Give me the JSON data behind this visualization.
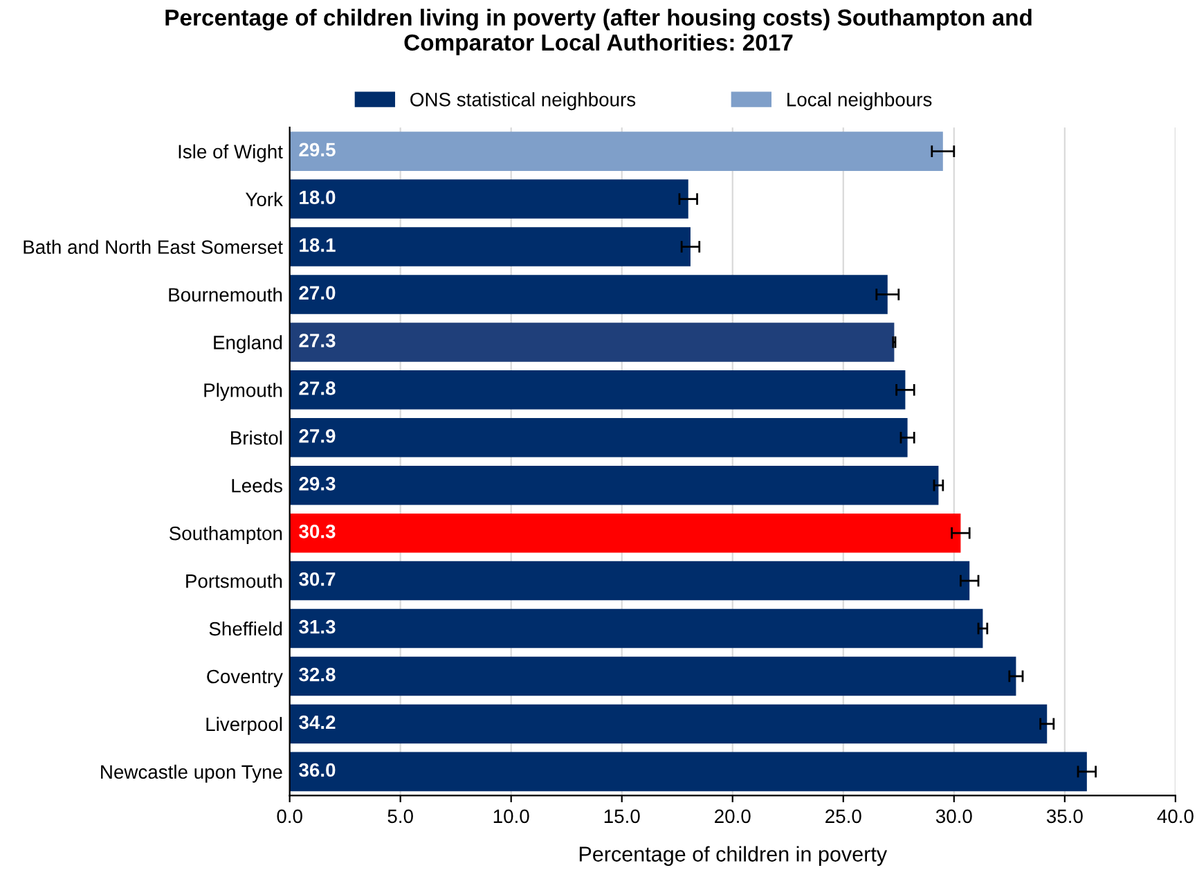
{
  "chart_data": {
    "type": "bar",
    "orientation": "horizontal",
    "title": "Percentage of children living in poverty (after housing costs) Southampton and\nComparator Local Authorities: 2017",
    "xlabel": "Percentage of children in poverty",
    "categories": [
      "Isle of Wight",
      "York",
      "Bath and North East Somerset",
      "Bournemouth",
      "England",
      "Plymouth",
      "Bristol",
      "Leeds",
      "Southampton",
      "Portsmouth",
      "Sheffield",
      "Coventry",
      "Liverpool",
      "Newcastle upon Tyne"
    ],
    "series": [
      {
        "name": "ONS statistical neighbours",
        "color": "#002d6b",
        "colors": [
          "#002d6b",
          "#002d6b",
          "#002d6b",
          "#002d6b",
          "#1f3f7a",
          "#002d6b",
          "#002d6b",
          "#002d6b",
          "#ff0000",
          "#002d6b",
          "#002d6b",
          "#002d6b",
          "#002d6b",
          "#002d6b"
        ],
        "values": [
          null,
          18.0,
          18.1,
          27.0,
          27.3,
          27.8,
          27.9,
          29.3,
          30.3,
          30.7,
          31.3,
          32.8,
          34.2,
          36.0
        ],
        "value_labels": [
          null,
          "18.0",
          "18.1",
          "27.0",
          "27.3",
          "27.8",
          "27.9",
          "29.3",
          "30.3",
          "30.7",
          "31.3",
          "32.8",
          "34.2",
          "36.0"
        ],
        "errors": [
          null,
          [
            17.6,
            18.4
          ],
          [
            17.7,
            18.5
          ],
          [
            26.5,
            27.5
          ],
          [
            27.25,
            27.35
          ],
          [
            27.4,
            28.2
          ],
          [
            27.6,
            28.2
          ],
          [
            29.1,
            29.5
          ],
          [
            29.9,
            30.7
          ],
          [
            30.3,
            31.1
          ],
          [
            31.1,
            31.5
          ],
          [
            32.5,
            33.1
          ],
          [
            33.9,
            34.5
          ],
          [
            35.6,
            36.4
          ]
        ]
      },
      {
        "name": "Local neighbours",
        "color": "#7f9fc9",
        "values": [
          29.5,
          null,
          null,
          null,
          null,
          null,
          null,
          null,
          null,
          null,
          null,
          null,
          null,
          null
        ],
        "value_labels": [
          "29.5",
          null,
          null,
          null,
          null,
          null,
          null,
          null,
          null,
          null,
          null,
          null,
          null,
          null
        ],
        "errors": [
          [
            29.0,
            30.0
          ],
          null,
          null,
          null,
          null,
          null,
          null,
          null,
          null,
          null,
          null,
          null,
          null,
          null
        ]
      }
    ],
    "xlim": [
      0,
      40
    ],
    "xticks": [
      {
        "value": 0,
        "label": "0.0"
      },
      {
        "value": 5,
        "label": "5.0"
      },
      {
        "value": 10,
        "label": "10.0"
      },
      {
        "value": 15,
        "label": "15.0"
      },
      {
        "value": 20,
        "label": "20.0"
      },
      {
        "value": 25,
        "label": "25.0"
      },
      {
        "value": 30,
        "label": "30.0"
      },
      {
        "value": 35,
        "label": "35.0"
      },
      {
        "value": 40,
        "label": "40.0"
      }
    ],
    "grid": "x",
    "legend": "top"
  }
}
